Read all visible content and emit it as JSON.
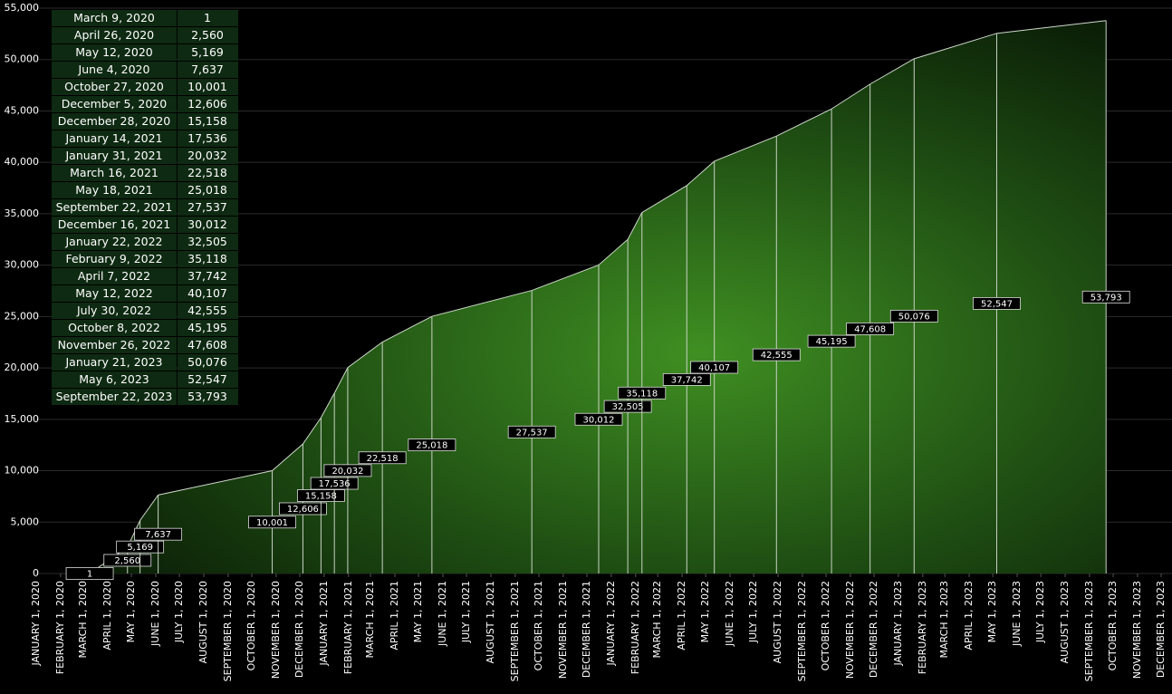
{
  "chart_data": {
    "type": "area",
    "x": [
      "March 9, 2020",
      "April 26, 2020",
      "May 12, 2020",
      "June 4, 2020",
      "October 27, 2020",
      "December 5, 2020",
      "December 28, 2020",
      "January 14, 2021",
      "January 31, 2021",
      "March 16, 2021",
      "May 18, 2021",
      "September 22, 2021",
      "December 16, 2021",
      "January 22, 2022",
      "February 9, 2022",
      "April 7, 2022",
      "May 12, 2022",
      "July 30, 2022",
      "October 8, 2022",
      "November 26, 2022",
      "January 21, 2023",
      "May 6, 2023",
      "September 22, 2023"
    ],
    "values": [
      1,
      2560,
      5169,
      7637,
      10001,
      12606,
      15158,
      17536,
      20032,
      22518,
      25018,
      27537,
      30012,
      32505,
      35118,
      37742,
      40107,
      42555,
      45195,
      47608,
      50076,
      52547,
      53793
    ],
    "value_labels": [
      "1",
      "2,560",
      "5,169",
      "7,637",
      "10,001",
      "12,606",
      "15,158",
      "17,536",
      "20,032",
      "22,518",
      "25,018",
      "27,537",
      "30,012",
      "32,505",
      "35,118",
      "37,742",
      "40,107",
      "42,555",
      "45,195",
      "47,608",
      "50,076",
      "52,547",
      "53,793"
    ],
    "color": "#2e7d1a",
    "ylim": [
      0,
      55000
    ],
    "yticks": [
      0,
      {
        "value": 5000,
        "label": "5,000"
      },
      {
        "value": 10000,
        "label": "10,000"
      },
      {
        "value": 15000,
        "label": "15,000"
      },
      {
        "value": 20000,
        "label": "20,000"
      },
      {
        "value": 25000,
        "label": "25,000"
      },
      {
        "value": 30000,
        "label": "30,000"
      },
      {
        "value": 35000,
        "label": "35,000"
      },
      {
        "value": 40000,
        "label": "40,000"
      },
      {
        "value": 45000,
        "label": "45,000"
      },
      {
        "value": 50000,
        "label": "50,000"
      },
      {
        "value": 55000,
        "label": "55,000"
      }
    ],
    "xlim": [
      "2020-01-01",
      "2023-12-01"
    ],
    "xticks": [
      {
        "value": "2020-01-01",
        "label": "JANUARY 1, 2020"
      },
      {
        "value": "2020-02-01",
        "label": "FEBRUARY 1, 2020"
      },
      {
        "value": "2020-03-01",
        "label": "MARCH 1, 2020"
      },
      {
        "value": "2020-04-01",
        "label": "APRIL 1, 2020"
      },
      {
        "value": "2020-05-01",
        "label": "MAY 1, 2020"
      },
      {
        "value": "2020-06-01",
        "label": "JUNE 1, 2020"
      },
      {
        "value": "2020-07-01",
        "label": "JULY 1, 2020"
      },
      {
        "value": "2020-08-01",
        "label": "AUGUST 1, 2020"
      },
      {
        "value": "2020-09-01",
        "label": "SEPTEMBER 1, 2020"
      },
      {
        "value": "2020-10-01",
        "label": "OCTOBER 1, 2020"
      },
      {
        "value": "2020-11-01",
        "label": "NOVEMBER 1, 2020"
      },
      {
        "value": "2020-12-01",
        "label": "DECEMBER 1, 2020"
      },
      {
        "value": "2021-01-01",
        "label": "JANUARY 1, 2021"
      },
      {
        "value": "2021-02-01",
        "label": "FEBRUARY 1, 2021"
      },
      {
        "value": "2021-03-01",
        "label": "MARCH 1, 2021"
      },
      {
        "value": "2021-04-01",
        "label": "APRIL 1, 2021"
      },
      {
        "value": "2021-05-01",
        "label": "MAY 1, 2021"
      },
      {
        "value": "2021-06-01",
        "label": "JUNE 1, 2021"
      },
      {
        "value": "2021-07-01",
        "label": "JULY 1, 2021"
      },
      {
        "value": "2021-08-01",
        "label": "AUGUST 1, 2021"
      },
      {
        "value": "2021-09-01",
        "label": "SEPTEMBER 1, 2021"
      },
      {
        "value": "2021-10-01",
        "label": "OCTOBER 1, 2021"
      },
      {
        "value": "2021-11-01",
        "label": "NOVEMBER 1, 2021"
      },
      {
        "value": "2021-12-01",
        "label": "DECEMBER 1, 2021"
      },
      {
        "value": "2022-01-01",
        "label": "JANUARY 1, 2022"
      },
      {
        "value": "2022-02-01",
        "label": "FEBRUARY 1, 2022"
      },
      {
        "value": "2022-03-01",
        "label": "MARCH 1, 2022"
      },
      {
        "value": "2022-04-01",
        "label": "APRIL 1, 2022"
      },
      {
        "value": "2022-05-01",
        "label": "MAY 1, 2022"
      },
      {
        "value": "2022-06-01",
        "label": "JUNE 1, 2022"
      },
      {
        "value": "2022-07-01",
        "label": "JULY 1, 2022"
      },
      {
        "value": "2022-08-01",
        "label": "AUGUST 1, 2022"
      },
      {
        "value": "2022-09-01",
        "label": "SEPTEMBER 1, 2022"
      },
      {
        "value": "2022-10-01",
        "label": "OCTOBER 1, 2022"
      },
      {
        "value": "2022-11-01",
        "label": "NOVEMBER 1, 2022"
      },
      {
        "value": "2022-12-01",
        "label": "DECEMBER 1, 2022"
      },
      {
        "value": "2023-01-01",
        "label": "JANUARY 1, 2023"
      },
      {
        "value": "2023-02-01",
        "label": "FEBRUARY 1, 2023"
      },
      {
        "value": "2023-03-01",
        "label": "MARCH 1, 2023"
      },
      {
        "value": "2023-04-01",
        "label": "APRIL 1, 2023"
      },
      {
        "value": "2023-05-01",
        "label": "MAY 1, 2023"
      },
      {
        "value": "2023-06-01",
        "label": "JUNE 1, 2023"
      },
      {
        "value": "2023-07-01",
        "label": "JULY 1, 2023"
      },
      {
        "value": "2023-08-01",
        "label": "AUGUST 1, 2023"
      },
      {
        "value": "2023-09-01",
        "label": "SEPTEMBER 1, 2023"
      },
      {
        "value": "2023-10-01",
        "label": "OCTOBER 1, 2023"
      },
      {
        "value": "2023-11-01",
        "label": "NOVEMBER 1, 2023"
      },
      {
        "value": "2023-12-01",
        "label": "DECEMBER 1, 2023"
      }
    ],
    "grid": true
  }
}
